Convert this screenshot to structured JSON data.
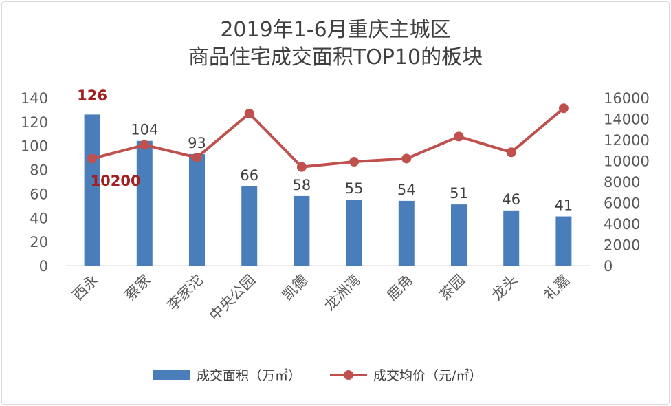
{
  "chart_data": {
    "type": "bar",
    "title": "2019年1-6月重庆主城区",
    "subtitle": "商品住宅成交面积TOP10的板块",
    "categories": [
      "西永",
      "蔡家",
      "李家沱",
      "中央公园",
      "凯德",
      "龙洲湾",
      "鹿角",
      "茶园",
      "龙头",
      "礼嘉"
    ],
    "series": [
      {
        "name": "成交面积（万㎡）",
        "type": "bar",
        "axis": "left",
        "color": "#4a7ebb",
        "values": [
          126,
          104,
          93,
          66,
          58,
          55,
          54,
          51,
          46,
          41
        ]
      },
      {
        "name": "成交均价（元/㎡）",
        "type": "line",
        "axis": "right",
        "color": "#c0504d",
        "values": [
          10200,
          11500,
          10300,
          14500,
          9400,
          9900,
          10200,
          12300,
          10800,
          15000
        ]
      }
    ],
    "left_axis": {
      "ylim": [
        0,
        140
      ],
      "ticks": [
        0,
        20,
        40,
        60,
        80,
        100,
        120,
        140
      ]
    },
    "right_axis": {
      "ylim": [
        0,
        16000
      ],
      "ticks": [
        0,
        2000,
        4000,
        6000,
        8000,
        10000,
        12000,
        14000,
        16000
      ]
    },
    "annotations": {
      "first_bar_value": "126",
      "first_line_value": "10200"
    },
    "legend_position": "bottom"
  }
}
